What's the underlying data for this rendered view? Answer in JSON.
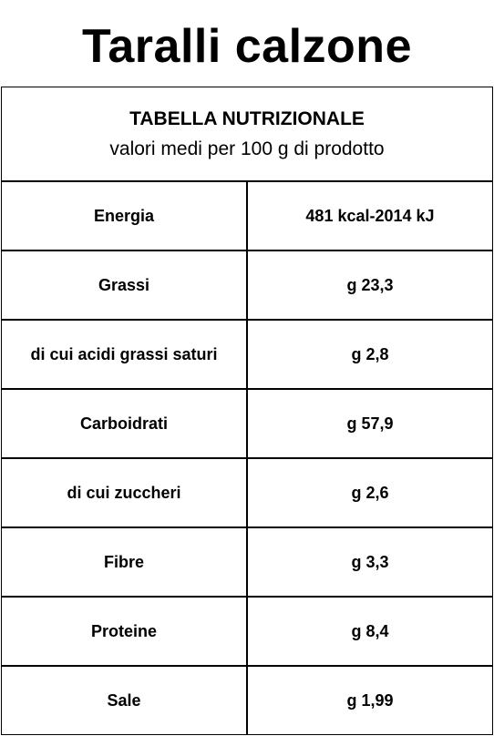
{
  "title": "Taralli calzone",
  "table": {
    "header_title": "TABELLA NUTRIZIONALE",
    "header_subtitle": "valori medi per 100 g di prodotto",
    "rows": [
      {
        "name": "Energia",
        "value": "481 kcal-2014 kJ"
      },
      {
        "name": "Grassi",
        "value": "g 23,3"
      },
      {
        "name": "di cui acidi grassi saturi",
        "value": "g 2,8"
      },
      {
        "name": "Carboidrati",
        "value": "g 57,9"
      },
      {
        "name": "di cui zuccheri",
        "value": "g 2,6"
      },
      {
        "name": "Fibre",
        "value": "g 3,3"
      },
      {
        "name": "Proteine",
        "value": "g 8,4"
      },
      {
        "name": "Sale",
        "value": "g 1,99"
      }
    ]
  }
}
